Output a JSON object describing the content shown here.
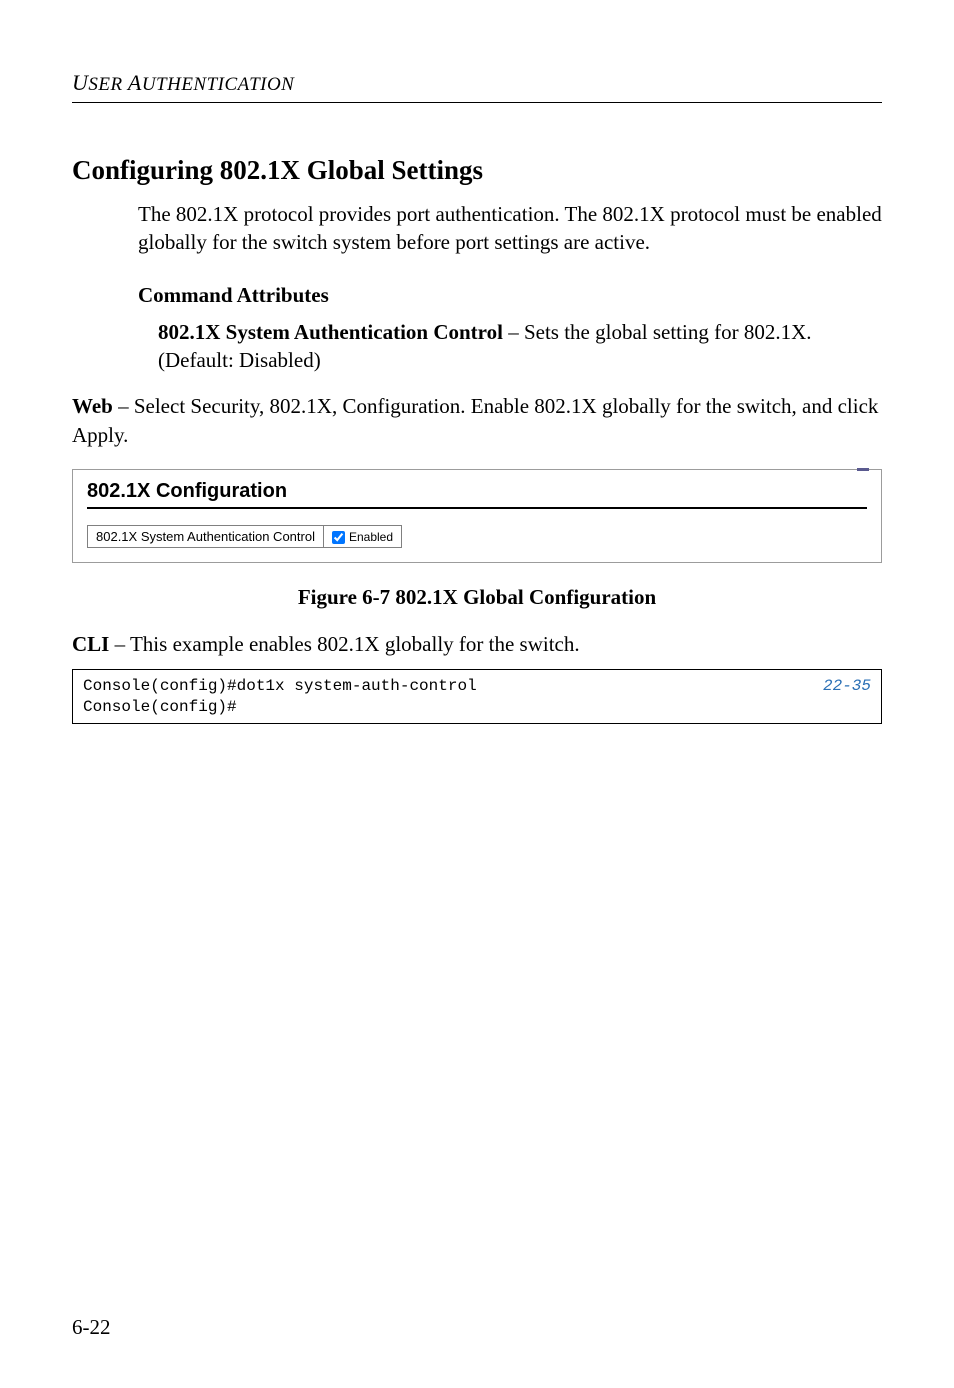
{
  "running_head": {
    "text_html": "<span class=\"first\">U</span>SER <span class=\"first\">A</span>UTHENTICATION"
  },
  "section_title": "Configuring 802.1X Global Settings",
  "intro_paragraph": "The 802.1X protocol provides port authentication. The 802.1X protocol must be enabled globally for the switch system before port settings are active.",
  "command_attributes_heading": "Command Attributes",
  "attribute_bold": "802.1X System Authentication Control",
  "attribute_rest": " – Sets the global setting for 802.1X. (Default: Disabled)",
  "web_bold": "Web",
  "web_rest": " – Select Security, 802.1X, Configuration. Enable 802.1X globally for the switch, and click Apply.",
  "figure": {
    "title": "802.1X Configuration",
    "field_label": "802.1X System Authentication Control",
    "checkbox_checked": true,
    "checkbox_label": "Enabled"
  },
  "caption": "Figure 6-7  802.1X Global Configuration",
  "cli_bold": "CLI",
  "cli_rest": " – This example enables 802.1X globally for the switch.",
  "code": {
    "line1": "Console(config)#dot1x system-auth-control",
    "ref": "22-35",
    "line2": "Console(config)#"
  },
  "page_number": "6-22",
  "colors": {
    "text": "#000000",
    "code_ref": "#2a6fb5",
    "border_gray": "#808080",
    "figure_border": "#9c9c9c",
    "accent": "#5a5a8f"
  }
}
